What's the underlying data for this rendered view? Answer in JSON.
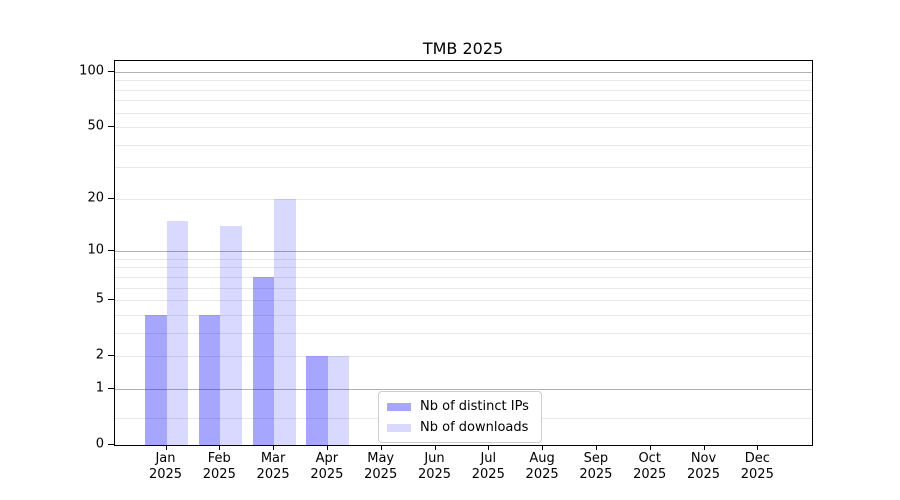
{
  "chart_data": {
    "type": "bar",
    "title": "TMB 2025",
    "xlabel": "",
    "ylabel": "",
    "categories": [
      "Jan 2025",
      "Feb 2025",
      "Mar 2025",
      "Apr 2025",
      "May 2025",
      "Jun 2025",
      "Jul 2025",
      "Aug 2025",
      "Sep 2025",
      "Oct 2025",
      "Nov 2025",
      "Dec 2025"
    ],
    "series": [
      {
        "name": "Nb of distinct IPs",
        "base_color": "#0000ff",
        "alpha": 0.35,
        "display_color": "#a6a6ff",
        "values": [
          4,
          4,
          7,
          2,
          null,
          null,
          null,
          null,
          null,
          null,
          null,
          null
        ]
      },
      {
        "name": "Nb of downloads",
        "base_color": "#0000ff",
        "alpha": 0.15,
        "display_color": "#d9d9ff",
        "values": [
          15,
          14,
          20,
          2,
          null,
          null,
          null,
          null,
          null,
          null,
          null,
          null
        ]
      }
    ],
    "y_axis": {
      "scale": "log10(value+1)",
      "tick_labels": [
        "0",
        "1",
        "2",
        "5",
        "10",
        "20",
        "50",
        "100"
      ],
      "tick_values": [
        0,
        1,
        2,
        5,
        10,
        20,
        50,
        100
      ],
      "major_gridlines": [
        1,
        10,
        100
      ],
      "minor_gridlines": [
        0.4,
        2,
        3,
        4,
        5,
        6,
        7,
        8,
        9,
        20,
        30,
        40,
        50,
        60,
        70,
        80,
        90
      ],
      "ylim": [
        0,
        114
      ]
    },
    "grid": "on",
    "legend_position": "bottom-center",
    "colors": {
      "major_gridline": "#b2b2b2",
      "minor_gridline": "#e8e8e8",
      "spine": "#000000",
      "text": "#000000",
      "background": "#ffffff"
    }
  }
}
